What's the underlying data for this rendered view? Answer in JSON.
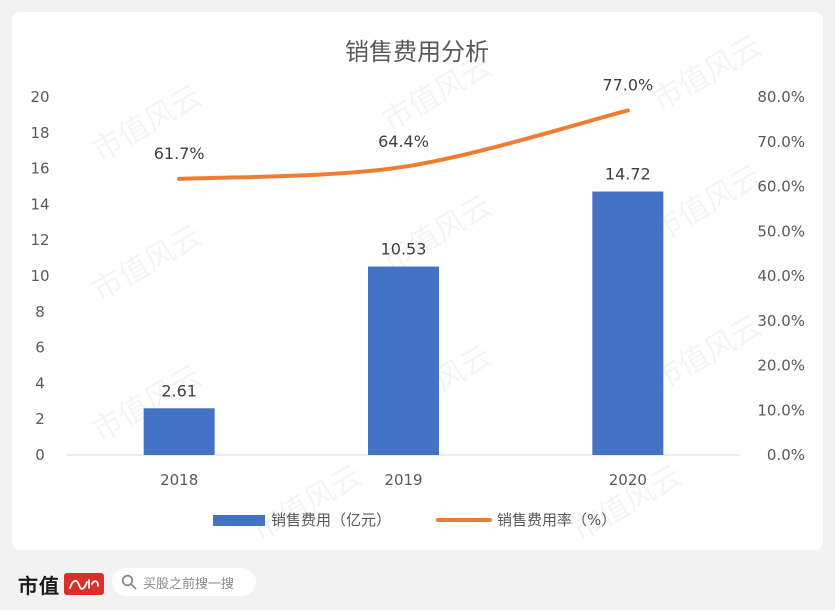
{
  "chart_data": {
    "type": "bar",
    "title": "销售费用分析",
    "categories": [
      "2018",
      "2019",
      "2020"
    ],
    "series": [
      {
        "name": "销售费用（亿元）",
        "type": "bar",
        "axis": "left",
        "values": [
          2.61,
          10.53,
          14.72
        ],
        "color": "#4472c4"
      },
      {
        "name": "销售费用率（%）",
        "type": "line",
        "axis": "right",
        "values": [
          61.7,
          64.4,
          77.0
        ],
        "color": "#ed7d31"
      }
    ],
    "bar_labels": [
      "2.61",
      "10.53",
      "14.72"
    ],
    "line_labels": [
      "61.7%",
      "64.4%",
      "77.0%"
    ],
    "y_left": {
      "min": 0,
      "max": 20,
      "ticks": [
        "0",
        "2",
        "4",
        "6",
        "8",
        "10",
        "12",
        "14",
        "16",
        "18",
        "20"
      ]
    },
    "y_right": {
      "min": 0,
      "max": 80,
      "ticks": [
        "0.0%",
        "10.0%",
        "20.0%",
        "30.0%",
        "40.0%",
        "50.0%",
        "60.0%",
        "70.0%",
        "80.0%"
      ]
    },
    "grid": false,
    "legend_position": "bottom",
    "watermark": "市值风云"
  },
  "footer": {
    "brand": "市值",
    "search_placeholder": "买股之前搜一搜",
    "brand_color": "#d9302b"
  }
}
